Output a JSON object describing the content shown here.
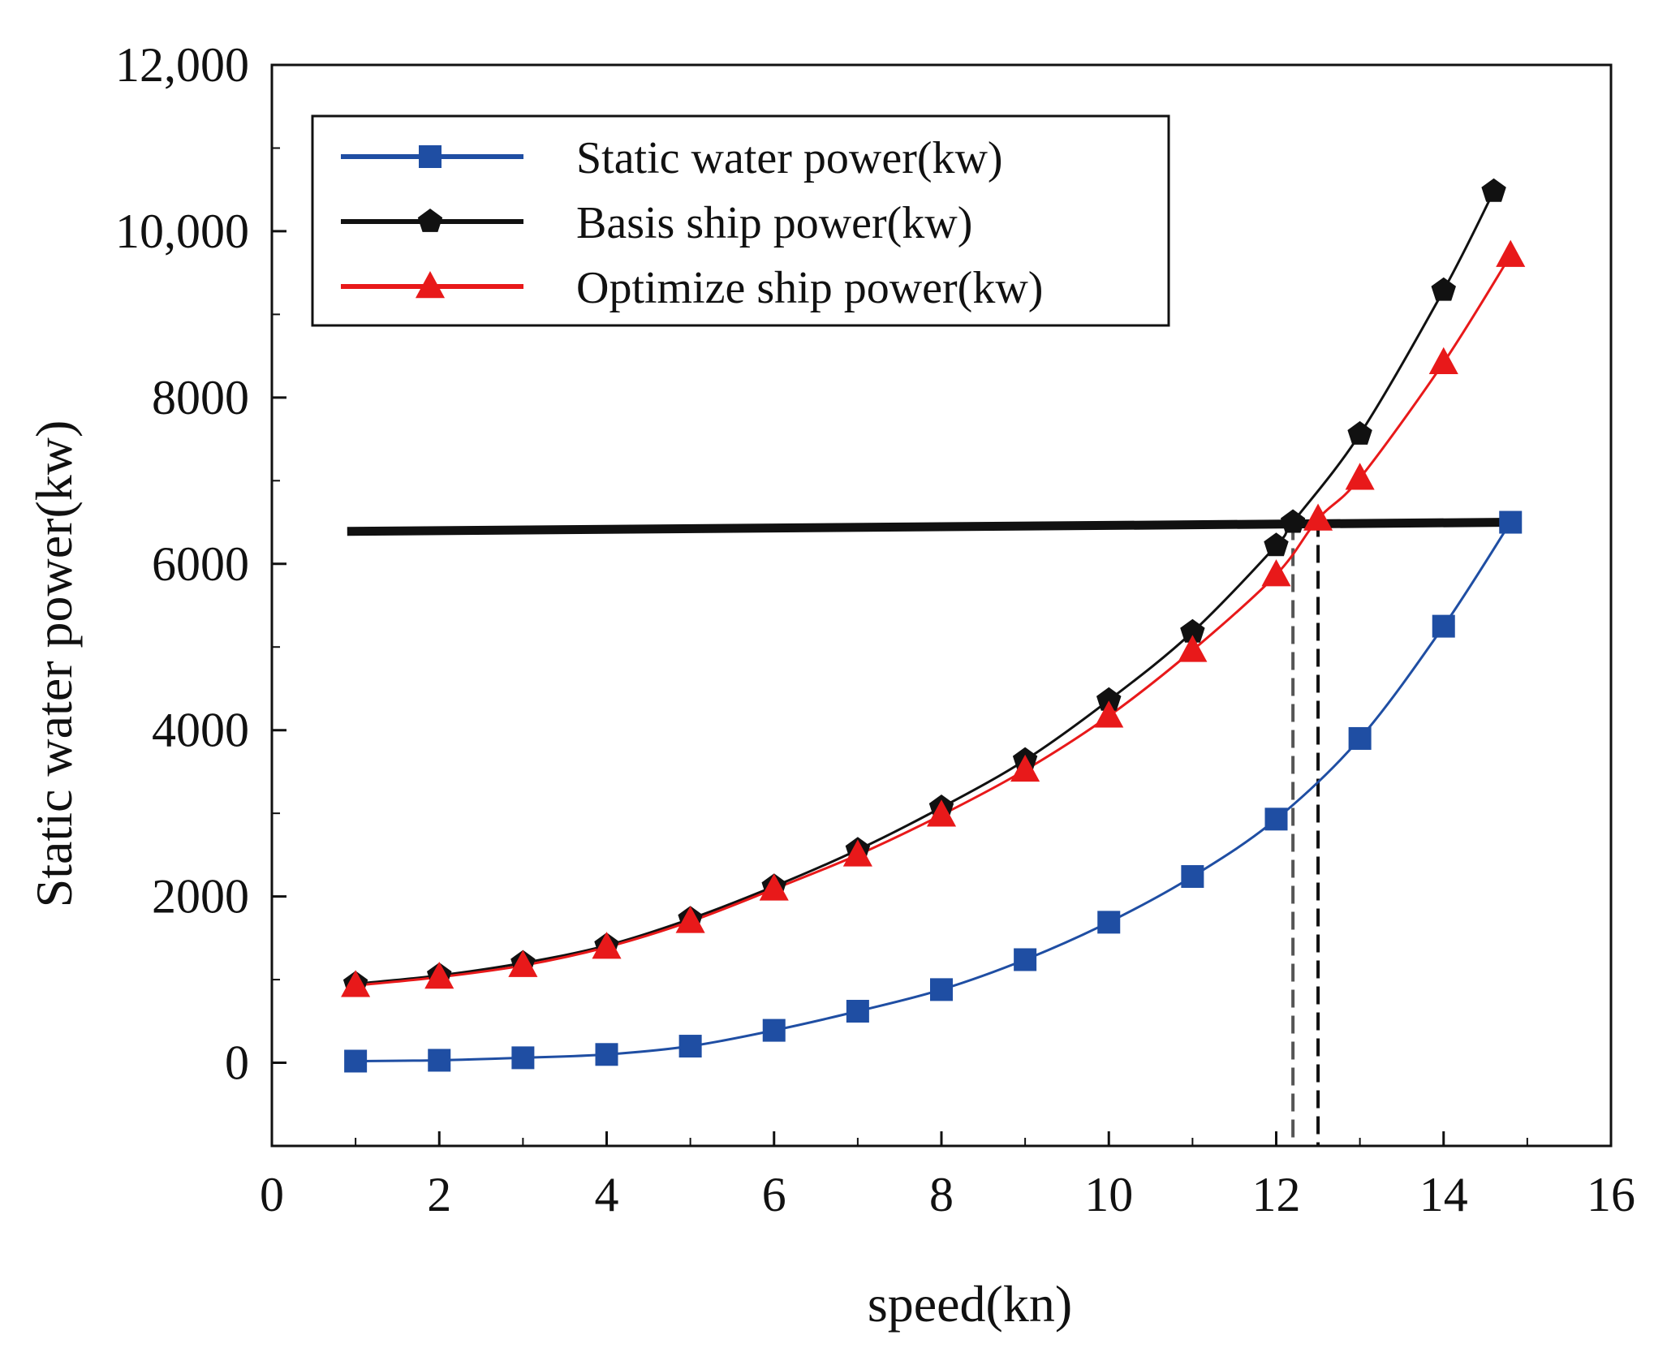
{
  "chart_data": {
    "type": "line",
    "title": "",
    "xlabel": "speed(kn)",
    "ylabel": "Static water power(kw)",
    "xlim": [
      0,
      16
    ],
    "ylim": [
      -1000,
      12000
    ],
    "xticks": [
      0,
      2,
      4,
      6,
      8,
      10,
      12,
      14,
      16
    ],
    "xtick_labels": [
      "0",
      "2",
      "4",
      "6",
      "8",
      "10",
      "12",
      "14",
      "16"
    ],
    "yticks": [
      0,
      2000,
      4000,
      6000,
      8000,
      10000,
      12000
    ],
    "ytick_labels": [
      "0",
      "2000",
      "4000",
      "6000",
      "8000",
      "10,000",
      "12,000"
    ],
    "legend_position": "top-left",
    "series": [
      {
        "name": "Static water power(kw)",
        "color": "#1f4ea3",
        "marker": "square",
        "x": [
          1,
          2,
          3,
          4,
          5,
          6,
          7,
          8,
          9,
          10,
          11,
          12,
          13,
          14,
          14.8
        ],
        "y": [
          20,
          30,
          60,
          100,
          200,
          390,
          620,
          880,
          1240,
          1690,
          2240,
          2930,
          3900,
          5250,
          6500
        ]
      },
      {
        "name": "Basis ship power(kw)",
        "color": "#111111",
        "marker": "pentagon",
        "x": [
          1,
          2,
          3,
          4,
          5,
          6,
          7,
          8,
          9,
          10,
          11,
          12,
          12.2,
          13,
          14,
          14.6
        ],
        "y": [
          950,
          1050,
          1200,
          1410,
          1730,
          2120,
          2560,
          3070,
          3640,
          4360,
          5180,
          6220,
          6500,
          7560,
          9290,
          10480
        ]
      },
      {
        "name": "Optimize ship power(kw)",
        "color": "#e8191a",
        "marker": "triangle",
        "x": [
          1,
          2,
          3,
          4,
          5,
          6,
          7,
          8,
          9,
          10,
          11,
          12,
          12.5,
          13,
          14,
          14.8
        ],
        "y": [
          930,
          1030,
          1170,
          1390,
          1700,
          2090,
          2500,
          2980,
          3520,
          4170,
          4960,
          5870,
          6540,
          7030,
          8420,
          9710
        ]
      }
    ],
    "annotations": {
      "threshold_line": {
        "x_start": 0.9,
        "y_start": 6390,
        "x_end": 14.8,
        "y_end": 6500
      },
      "dashed_verticals": [
        {
          "x": 12.2,
          "y_top": 6500
        },
        {
          "x": 12.5,
          "y_top": 6540
        }
      ]
    }
  }
}
